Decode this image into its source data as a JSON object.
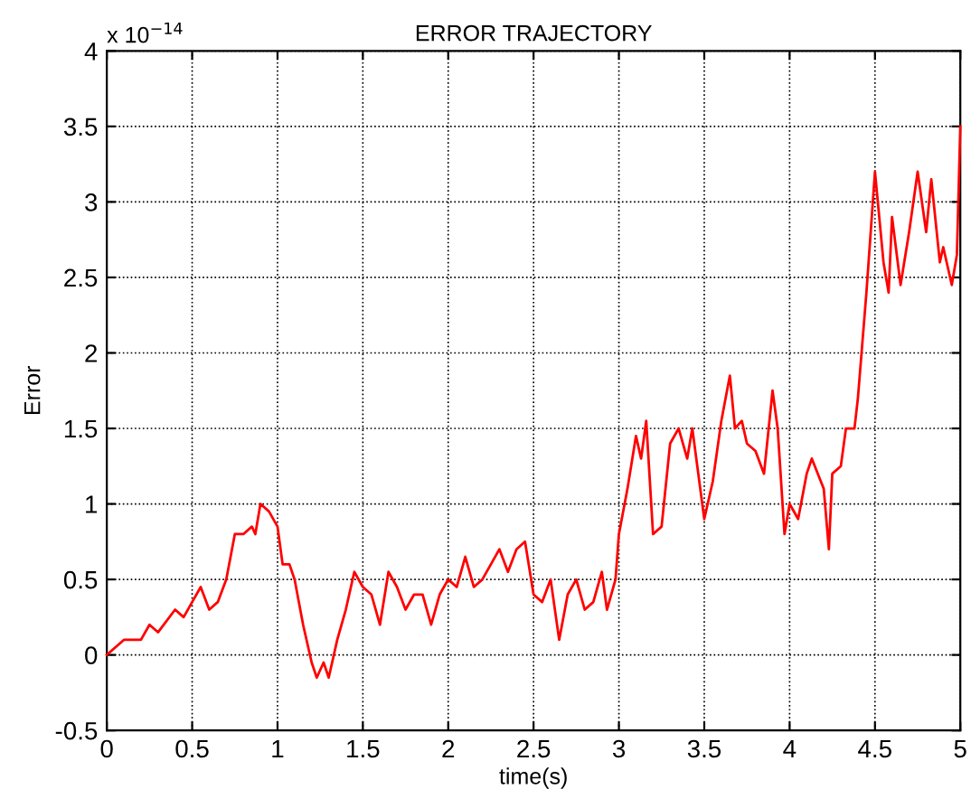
{
  "chart_data": {
    "type": "line",
    "title": "ERROR TRAJECTORY",
    "xlabel": "time(s)",
    "ylabel": "Error",
    "annotations": [
      "x 10$^{−14}$"
    ],
    "x": [
      0,
      0.1,
      0.2,
      0.25,
      0.3,
      0.4,
      0.45,
      0.5,
      0.55,
      0.6,
      0.65,
      0.7,
      0.75,
      0.8,
      0.85,
      0.87,
      0.9,
      0.95,
      1.0,
      1.03,
      1.07,
      1.1,
      1.15,
      1.2,
      1.23,
      1.27,
      1.3,
      1.35,
      1.4,
      1.45,
      1.5,
      1.55,
      1.6,
      1.65,
      1.7,
      1.75,
      1.8,
      1.85,
      1.9,
      1.95,
      2.0,
      2.05,
      2.1,
      2.15,
      2.2,
      2.3,
      2.35,
      2.4,
      2.45,
      2.5,
      2.55,
      2.6,
      2.65,
      2.7,
      2.75,
      2.8,
      2.85,
      2.9,
      2.93,
      2.98,
      3.0,
      3.05,
      3.1,
      3.13,
      3.16,
      3.2,
      3.25,
      3.3,
      3.35,
      3.4,
      3.43,
      3.5,
      3.55,
      3.6,
      3.65,
      3.68,
      3.72,
      3.75,
      3.8,
      3.85,
      3.9,
      3.93,
      3.97,
      4.0,
      4.05,
      4.1,
      4.13,
      4.2,
      4.23,
      4.25,
      4.3,
      4.33,
      4.38,
      4.4,
      4.45,
      4.5,
      4.55,
      4.58,
      4.6,
      4.65,
      4.7,
      4.75,
      4.8,
      4.83,
      4.88,
      4.9,
      4.95,
      4.98,
      5.0
    ],
    "series": [
      {
        "color": "#ff0000",
        "values": [
          0,
          0.1,
          0.1,
          0.2,
          0.15,
          0.3,
          0.25,
          0.35,
          0.45,
          0.3,
          0.35,
          0.5,
          0.8,
          0.8,
          0.85,
          0.8,
          1.0,
          0.95,
          0.85,
          0.6,
          0.6,
          0.5,
          0.2,
          -0.05,
          -0.15,
          -0.05,
          -0.15,
          0.1,
          0.3,
          0.55,
          0.45,
          0.4,
          0.2,
          0.55,
          0.45,
          0.3,
          0.4,
          0.4,
          0.2,
          0.4,
          0.5,
          0.45,
          0.65,
          0.45,
          0.5,
          0.7,
          0.55,
          0.7,
          0.75,
          0.4,
          0.35,
          0.5,
          0.1,
          0.4,
          0.5,
          0.3,
          0.35,
          0.55,
          0.3,
          0.5,
          0.8,
          1.1,
          1.45,
          1.3,
          1.55,
          0.8,
          0.85,
          1.4,
          1.5,
          1.3,
          1.5,
          0.9,
          1.15,
          1.55,
          1.85,
          1.5,
          1.55,
          1.4,
          1.35,
          1.2,
          1.75,
          1.5,
          0.8,
          1.0,
          0.9,
          1.2,
          1.3,
          1.1,
          0.7,
          1.2,
          1.25,
          1.5,
          1.5,
          1.7,
          2.4,
          3.2,
          2.6,
          2.4,
          2.9,
          2.45,
          2.8,
          3.2,
          2.8,
          3.15,
          2.6,
          2.7,
          2.45,
          2.65,
          3.5
        ]
      }
    ],
    "xlim": [
      0,
      5
    ],
    "ylim": [
      -0.5,
      4
    ],
    "xticks": [
      0,
      0.5,
      1,
      1.5,
      2,
      2.5,
      3,
      3.5,
      4,
      4.5,
      5
    ],
    "yticks": [
      -0.5,
      0,
      0.5,
      1,
      1.5,
      2,
      2.5,
      3,
      3.5,
      4
    ],
    "grid": true,
    "legend": false,
    "marker": "none",
    "line_style": "solid"
  }
}
